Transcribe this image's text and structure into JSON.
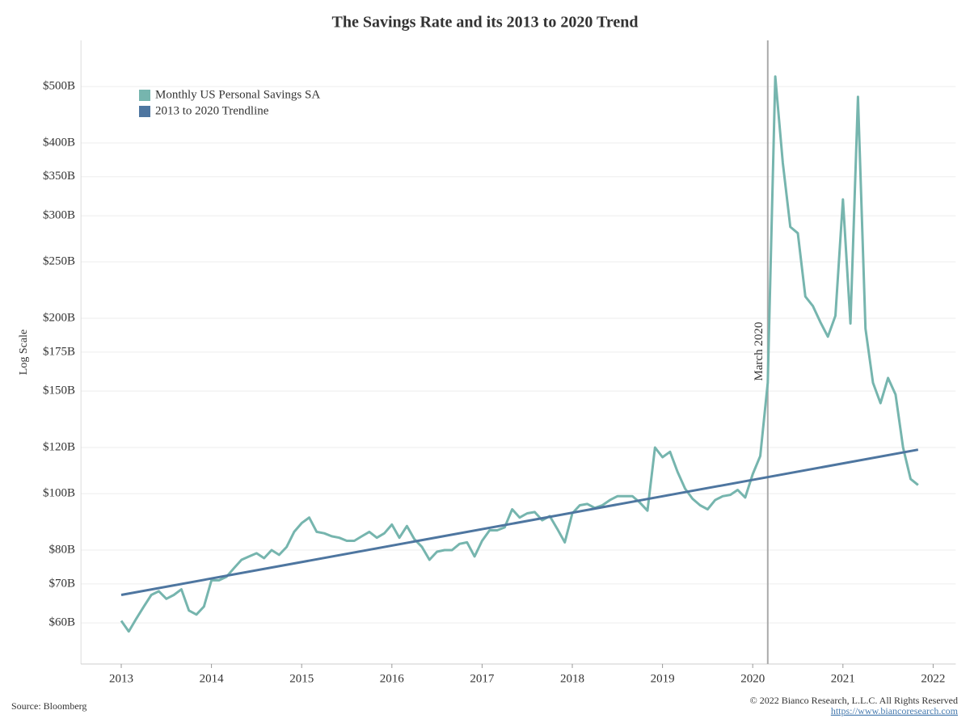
{
  "chart_data": {
    "type": "line",
    "title": "The Savings Rate and its 2013 to 2020 Trend",
    "y_label": "Log Scale",
    "log_y": true,
    "grid": true,
    "legend": "top-left",
    "x": [
      "2013-01",
      "2013-02",
      "2013-03",
      "2013-04",
      "2013-05",
      "2013-06",
      "2013-07",
      "2013-08",
      "2013-09",
      "2013-10",
      "2013-11",
      "2013-12",
      "2014-01",
      "2014-02",
      "2014-03",
      "2014-04",
      "2014-05",
      "2014-06",
      "2014-07",
      "2014-08",
      "2014-09",
      "2014-10",
      "2014-11",
      "2014-12",
      "2015-01",
      "2015-02",
      "2015-03",
      "2015-04",
      "2015-05",
      "2015-06",
      "2015-07",
      "2015-08",
      "2015-09",
      "2015-10",
      "2015-11",
      "2015-12",
      "2016-01",
      "2016-02",
      "2016-03",
      "2016-04",
      "2016-05",
      "2016-06",
      "2016-07",
      "2016-08",
      "2016-09",
      "2016-10",
      "2016-11",
      "2016-12",
      "2017-01",
      "2017-02",
      "2017-03",
      "2017-04",
      "2017-05",
      "2017-06",
      "2017-07",
      "2017-08",
      "2017-09",
      "2017-10",
      "2017-11",
      "2017-12",
      "2018-01",
      "2018-02",
      "2018-03",
      "2018-04",
      "2018-05",
      "2018-06",
      "2018-07",
      "2018-08",
      "2018-09",
      "2018-10",
      "2018-11",
      "2018-12",
      "2019-01",
      "2019-02",
      "2019-03",
      "2019-04",
      "2019-05",
      "2019-06",
      "2019-07",
      "2019-08",
      "2019-09",
      "2019-10",
      "2019-11",
      "2019-12",
      "2020-01",
      "2020-02",
      "2020-03",
      "2020-04",
      "2020-05",
      "2020-06",
      "2020-07",
      "2020-08",
      "2020-09",
      "2020-10",
      "2020-11",
      "2020-12",
      "2021-01",
      "2021-02",
      "2021-03",
      "2021-04",
      "2021-05",
      "2021-06",
      "2021-07",
      "2021-08",
      "2021-09",
      "2021-10",
      "2021-11"
    ],
    "series": [
      {
        "name": "Monthly US Personal Savings SA",
        "color": "#76b5ae",
        "values": [
          60.5,
          58,
          61,
          64,
          67,
          68,
          66,
          67,
          68.5,
          63,
          62,
          64,
          71,
          71,
          72,
          74.5,
          77,
          78,
          79,
          77.5,
          80,
          78.5,
          81,
          86,
          89,
          91,
          86,
          85.5,
          84.5,
          84,
          83,
          83,
          84.5,
          86,
          84,
          85.5,
          88.5,
          84,
          88,
          83.5,
          81,
          77,
          79.5,
          80,
          80,
          82,
          82.5,
          78,
          83,
          86.5,
          86.5,
          87.5,
          94,
          91,
          92.5,
          93,
          90,
          91.5,
          87,
          82.5,
          92.5,
          95.5,
          96,
          94.5,
          95.5,
          97.5,
          99,
          99,
          99,
          96.5,
          93.5,
          120,
          115.5,
          118,
          109,
          102,
          98,
          95.5,
          94,
          97.5,
          99,
          99.5,
          101.5,
          98.5,
          108,
          116,
          155,
          520,
          370,
          287,
          280,
          218,
          210,
          197,
          186,
          202,
          320,
          196,
          480,
          192,
          155,
          143,
          158,
          148,
          120,
          106,
          103.5
        ]
      },
      {
        "name": "2013 to 2020 Trendline",
        "color": "#4e76a0",
        "x": [
          "2013-01",
          "2021-11"
        ],
        "values": [
          67,
          119
        ]
      }
    ],
    "annotation": {
      "x": "2020-03",
      "label": "March 2020",
      "color": "#aaaaaa"
    },
    "xlim": [
      "2012-07",
      "2022-04"
    ],
    "xticks": [
      "2013",
      "2014",
      "2015",
      "2016",
      "2017",
      "2018",
      "2019",
      "2020",
      "2021",
      "2022"
    ],
    "ylim": [
      51,
      600
    ],
    "yticks": [
      {
        "value": 60,
        "label": "$60B"
      },
      {
        "value": 70,
        "label": "$70B"
      },
      {
        "value": 80,
        "label": "$80B"
      },
      {
        "value": 100,
        "label": "$100B"
      },
      {
        "value": 120,
        "label": "$120B"
      },
      {
        "value": 150,
        "label": "$150B"
      },
      {
        "value": 175,
        "label": "$175B"
      },
      {
        "value": 200,
        "label": "$200B"
      },
      {
        "value": 250,
        "label": "$250B"
      },
      {
        "value": 300,
        "label": "$300B"
      },
      {
        "value": 350,
        "label": "$350B"
      },
      {
        "value": 400,
        "label": "$400B"
      },
      {
        "value": 500,
        "label": "$500B"
      }
    ],
    "source": "Source: Bloomberg",
    "copyright": "© 2022 Bianco Research, L.L.C. All Rights Reserved",
    "url": "https://www.biancoresearch.com"
  }
}
